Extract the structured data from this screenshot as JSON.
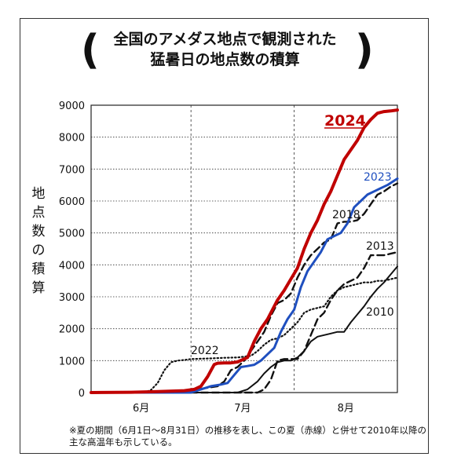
{
  "title_lines": [
    "全国のアメダス地点で観測された",
    "猛暑日の地点数の積算"
  ],
  "bracket_left": "(",
  "bracket_right": ")",
  "ylabel": "地点数の積算",
  "note": "※夏の期間（6月1日～8月31日）の推移を表し、この夏（赤線）と併せて2010年以降の主な高温年も示している。",
  "chart_data": {
    "type": "line",
    "ylim": [
      0,
      9000
    ],
    "yticks": [
      0,
      1000,
      2000,
      3000,
      4000,
      5000,
      6000,
      7000,
      8000,
      9000
    ],
    "xlim": [
      0,
      92
    ],
    "months": [
      {
        "label": "6月",
        "start": 0,
        "end": 30
      },
      {
        "label": "7月",
        "start": 30,
        "end": 61
      },
      {
        "label": "8月",
        "start": 61,
        "end": 92
      }
    ],
    "grid": "dashed vertical at month boundaries, horizontal at each 1000",
    "series": [
      {
        "name": "2024",
        "color": "#c00000",
        "style": "solid",
        "width": 4,
        "x": [
          0,
          12,
          20,
          28,
          31,
          33,
          35,
          37,
          38,
          40,
          42,
          44,
          47,
          49,
          51,
          53,
          56,
          58,
          60,
          62,
          64,
          66,
          68,
          70,
          72,
          74,
          76,
          78,
          80,
          82,
          84,
          86,
          88,
          90,
          92
        ],
        "y": [
          0,
          10,
          30,
          60,
          100,
          200,
          500,
          880,
          920,
          930,
          930,
          960,
          1100,
          1600,
          2000,
          2300,
          2900,
          3200,
          3550,
          3900,
          4500,
          5000,
          5400,
          5900,
          6300,
          6800,
          7300,
          7600,
          7900,
          8300,
          8550,
          8750,
          8800,
          8820,
          8850
        ]
      },
      {
        "name": "2023",
        "color": "#1f4fbf",
        "style": "solid",
        "width": 3,
        "x": [
          0,
          30,
          33,
          36,
          39,
          41,
          43,
          45,
          47,
          49,
          51,
          53,
          55,
          57,
          59,
          61,
          63,
          65,
          67,
          69,
          71,
          73,
          75,
          77,
          79,
          81,
          83,
          85,
          87,
          89,
          92
        ],
        "y": [
          0,
          0,
          100,
          200,
          250,
          300,
          550,
          800,
          830,
          870,
          1000,
          1200,
          1400,
          1900,
          2300,
          2600,
          3300,
          3800,
          4100,
          4400,
          4800,
          4900,
          5000,
          5300,
          5800,
          6000,
          6200,
          6300,
          6400,
          6500,
          6700
        ]
      },
      {
        "name": "2022",
        "color": "#111111",
        "style": "dotted",
        "width": 2.2,
        "x": [
          0,
          16,
          18,
          20,
          22,
          24,
          26,
          28,
          30,
          33,
          36,
          40,
          44,
          48,
          50,
          52,
          54,
          56,
          58,
          60,
          62,
          64,
          66,
          68,
          70,
          72,
          74,
          76,
          78,
          80,
          82,
          84,
          86,
          88,
          90,
          92
        ],
        "y": [
          0,
          0,
          80,
          300,
          700,
          950,
          1000,
          1020,
          1050,
          1060,
          1070,
          1090,
          1100,
          1150,
          1300,
          1500,
          1650,
          1700,
          1800,
          2000,
          2200,
          2500,
          2600,
          2650,
          2700,
          3000,
          3200,
          3300,
          3350,
          3400,
          3450,
          3450,
          3500,
          3500,
          3550,
          3600
        ]
      },
      {
        "name": "2018",
        "color": "#111111",
        "style": "dashed",
        "width": 2.4,
        "x": [
          0,
          30,
          32,
          35,
          38,
          40,
          42,
          44,
          46,
          48,
          50,
          52,
          54,
          56,
          58,
          60,
          62,
          64,
          66,
          68,
          70,
          72,
          74,
          76,
          78,
          80,
          82,
          84,
          86,
          88,
          90,
          92
        ],
        "y": [
          0,
          0,
          100,
          150,
          200,
          350,
          700,
          800,
          1000,
          1300,
          1600,
          1900,
          2400,
          2800,
          2900,
          3100,
          3600,
          4000,
          4300,
          4500,
          4700,
          4800,
          5300,
          5350,
          5350,
          5400,
          5600,
          5900,
          6200,
          6300,
          6450,
          6550
        ]
      },
      {
        "name": "2013",
        "color": "#111111",
        "style": "dashed",
        "width": 2.4,
        "x": [
          0,
          30,
          38,
          45,
          50,
          52,
          54,
          56,
          58,
          60,
          62,
          64,
          66,
          68,
          70,
          72,
          74,
          76,
          78,
          80,
          82,
          84,
          86,
          88,
          90,
          92
        ],
        "y": [
          0,
          0,
          0,
          0,
          0,
          100,
          400,
          1000,
          1050,
          1050,
          1050,
          1300,
          1800,
          2300,
          2500,
          2900,
          3200,
          3400,
          3500,
          3600,
          3900,
          4300,
          4300,
          4300,
          4350,
          4400
        ]
      },
      {
        "name": "2010",
        "color": "#111111",
        "style": "solid",
        "width": 2,
        "x": [
          0,
          30,
          44,
          47,
          50,
          52,
          54,
          56,
          58,
          60,
          62,
          64,
          66,
          68,
          70,
          72,
          74,
          76,
          78,
          80,
          82,
          84,
          86,
          88,
          90,
          92
        ],
        "y": [
          0,
          0,
          0,
          100,
          350,
          600,
          800,
          950,
          1000,
          1000,
          1100,
          1300,
          1600,
          1750,
          1800,
          1850,
          1900,
          1900,
          2200,
          2450,
          2700,
          3000,
          3250,
          3450,
          3700,
          3950
        ]
      }
    ],
    "labels": [
      {
        "series": "2024",
        "text": "2024",
        "color": "#c00000"
      },
      {
        "series": "2023",
        "text": "2023",
        "color": "#1f4fbf"
      },
      {
        "series": "2022",
        "text": "2022",
        "color": "#111111"
      },
      {
        "series": "2018",
        "text": "2018",
        "color": "#111111"
      },
      {
        "series": "2013",
        "text": "2013",
        "color": "#111111"
      },
      {
        "series": "2010",
        "text": "2010",
        "color": "#111111"
      }
    ]
  }
}
